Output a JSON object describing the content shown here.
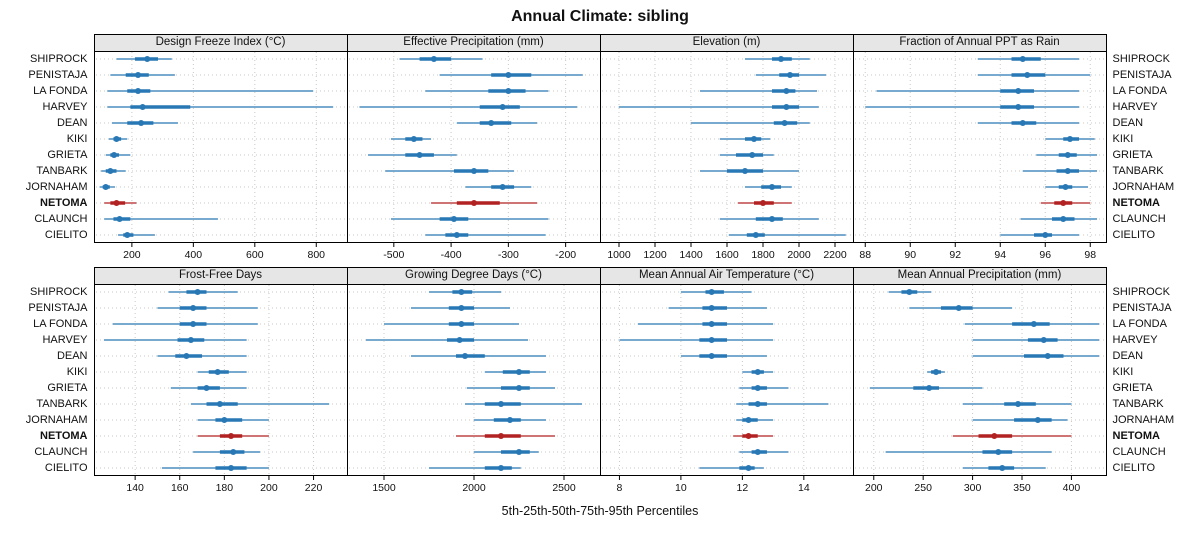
{
  "title": "Annual Climate: sibling",
  "caption": "5th-25th-50th-75th-95th Percentiles",
  "sites": [
    "SHIPROCK",
    "PENISTAJA",
    "LA FONDA",
    "HARVEY",
    "DEAN",
    "KIKI",
    "GRIETA",
    "TANBARK",
    "JORNAHAM",
    "NETOMA",
    "CLAUNCH",
    "CIELITO"
  ],
  "highlight_site": "NETOMA",
  "colors": {
    "series": "#2878b5",
    "highlight": "#b22222",
    "grid": "#c8c8c8",
    "panel_header_bg": "#e6e6e6",
    "border": "#000000"
  },
  "chart_data": [
    {
      "type": "dotplot-percentiles",
      "title": "Design Freeze Index (°C)",
      "xlim": [
        80,
        900
      ],
      "ticks": [
        200,
        400,
        600,
        800
      ],
      "series": [
        {
          "site": "SHIPROCK",
          "p5": 150,
          "p25": 210,
          "p50": 250,
          "p75": 285,
          "p95": 330
        },
        {
          "site": "PENISTAJA",
          "p5": 130,
          "p25": 180,
          "p50": 220,
          "p75": 255,
          "p95": 340
        },
        {
          "site": "LA FONDA",
          "p5": 120,
          "p25": 185,
          "p50": 220,
          "p75": 260,
          "p95": 790
        },
        {
          "site": "HARVEY",
          "p5": 120,
          "p25": 195,
          "p50": 235,
          "p75": 390,
          "p95": 855
        },
        {
          "site": "DEAN",
          "p5": 135,
          "p25": 185,
          "p50": 230,
          "p75": 270,
          "p95": 350
        },
        {
          "site": "KIKI",
          "p5": 125,
          "p25": 140,
          "p50": 150,
          "p75": 165,
          "p95": 185
        },
        {
          "site": "GRIETA",
          "p5": 115,
          "p25": 130,
          "p50": 142,
          "p75": 158,
          "p95": 195
        },
        {
          "site": "TANBARK",
          "p5": 100,
          "p25": 115,
          "p50": 130,
          "p75": 150,
          "p95": 180
        },
        {
          "site": "JORNAHAM",
          "p5": 95,
          "p25": 105,
          "p50": 115,
          "p75": 128,
          "p95": 145
        },
        {
          "site": "NETOMA",
          "p5": 110,
          "p25": 130,
          "p50": 150,
          "p75": 178,
          "p95": 215
        },
        {
          "site": "CLAUNCH",
          "p5": 110,
          "p25": 140,
          "p50": 160,
          "p75": 195,
          "p95": 480
        },
        {
          "site": "CIELITO",
          "p5": 155,
          "p25": 172,
          "p50": 185,
          "p75": 205,
          "p95": 275
        }
      ]
    },
    {
      "type": "dotplot-percentiles",
      "title": "Effective Precipitation (mm)",
      "xlim": [
        -580,
        -140
      ],
      "ticks": [
        -500,
        -400,
        -300,
        -200
      ],
      "series": [
        {
          "site": "SHIPROCK",
          "p5": -490,
          "p25": -455,
          "p50": -430,
          "p75": -400,
          "p95": -345
        },
        {
          "site": "PENISTAJA",
          "p5": -420,
          "p25": -330,
          "p50": -300,
          "p75": -260,
          "p95": -170
        },
        {
          "site": "LA FONDA",
          "p5": -445,
          "p25": -335,
          "p50": -300,
          "p75": -270,
          "p95": -230
        },
        {
          "site": "HARVEY",
          "p5": -560,
          "p25": -350,
          "p50": -310,
          "p75": -280,
          "p95": -180
        },
        {
          "site": "DEAN",
          "p5": -390,
          "p25": -350,
          "p50": -330,
          "p75": -295,
          "p95": -250
        },
        {
          "site": "KIKI",
          "p5": -505,
          "p25": -480,
          "p50": -465,
          "p75": -450,
          "p95": -435
        },
        {
          "site": "GRIETA",
          "p5": -545,
          "p25": -480,
          "p50": -455,
          "p75": -430,
          "p95": -390
        },
        {
          "site": "TANBARK",
          "p5": -515,
          "p25": -395,
          "p50": -360,
          "p75": -335,
          "p95": -290
        },
        {
          "site": "JORNAHAM",
          "p5": -375,
          "p25": -330,
          "p50": -310,
          "p75": -290,
          "p95": -260
        },
        {
          "site": "NETOMA",
          "p5": -435,
          "p25": -390,
          "p50": -360,
          "p75": -315,
          "p95": -250
        },
        {
          "site": "CLAUNCH",
          "p5": -505,
          "p25": -420,
          "p50": -395,
          "p75": -370,
          "p95": -230
        },
        {
          "site": "CIELITO",
          "p5": -445,
          "p25": -410,
          "p50": -390,
          "p75": -370,
          "p95": -235
        }
      ]
    },
    {
      "type": "dotplot-percentiles",
      "title": "Elevation (m)",
      "xlim": [
        900,
        2300
      ],
      "ticks": [
        1000,
        1200,
        1400,
        1600,
        1800,
        2000,
        2200
      ],
      "series": [
        {
          "site": "SHIPROCK",
          "p5": 1700,
          "p25": 1850,
          "p50": 1900,
          "p75": 1960,
          "p95": 2060
        },
        {
          "site": "PENISTAJA",
          "p5": 1760,
          "p25": 1890,
          "p50": 1950,
          "p75": 2000,
          "p95": 2150
        },
        {
          "site": "LA FONDA",
          "p5": 1450,
          "p25": 1850,
          "p50": 1930,
          "p75": 1980,
          "p95": 2100
        },
        {
          "site": "HARVEY",
          "p5": 1000,
          "p25": 1850,
          "p50": 1930,
          "p75": 2000,
          "p95": 2110
        },
        {
          "site": "DEAN",
          "p5": 1400,
          "p25": 1860,
          "p50": 1920,
          "p75": 1990,
          "p95": 2060
        },
        {
          "site": "KIKI",
          "p5": 1560,
          "p25": 1700,
          "p50": 1750,
          "p75": 1790,
          "p95": 1840
        },
        {
          "site": "GRIETA",
          "p5": 1560,
          "p25": 1650,
          "p50": 1740,
          "p75": 1800,
          "p95": 1860
        },
        {
          "site": "TANBARK",
          "p5": 1450,
          "p25": 1600,
          "p50": 1700,
          "p75": 1800,
          "p95": 2000
        },
        {
          "site": "JORNAHAM",
          "p5": 1700,
          "p25": 1790,
          "p50": 1850,
          "p75": 1900,
          "p95": 1960
        },
        {
          "site": "NETOMA",
          "p5": 1660,
          "p25": 1750,
          "p50": 1800,
          "p75": 1860,
          "p95": 1960
        },
        {
          "site": "CLAUNCH",
          "p5": 1560,
          "p25": 1760,
          "p50": 1850,
          "p75": 1910,
          "p95": 2110
        },
        {
          "site": "CIELITO",
          "p5": 1610,
          "p25": 1710,
          "p50": 1760,
          "p75": 1810,
          "p95": 2260
        }
      ]
    },
    {
      "type": "dotplot-percentiles",
      "title": "Fraction of Annual PPT as Rain",
      "xlim": [
        87.5,
        98.7
      ],
      "ticks": [
        88,
        90,
        92,
        94,
        96,
        98
      ],
      "series": [
        {
          "site": "SHIPROCK",
          "p5": 93.0,
          "p25": 94.5,
          "p50": 95.0,
          "p75": 95.8,
          "p95": 97.5
        },
        {
          "site": "PENISTAJA",
          "p5": 93.0,
          "p25": 94.5,
          "p50": 95.2,
          "p75": 96.0,
          "p95": 98.0
        },
        {
          "site": "LA FONDA",
          "p5": 88.5,
          "p25": 94.0,
          "p50": 94.8,
          "p75": 95.5,
          "p95": 97.5
        },
        {
          "site": "HARVEY",
          "p5": 88.0,
          "p25": 94.0,
          "p50": 94.8,
          "p75": 95.5,
          "p95": 97.5
        },
        {
          "site": "DEAN",
          "p5": 93.0,
          "p25": 94.5,
          "p50": 95.0,
          "p75": 95.6,
          "p95": 97.5
        },
        {
          "site": "KIKI",
          "p5": 96.0,
          "p25": 96.8,
          "p50": 97.1,
          "p75": 97.5,
          "p95": 98.2
        },
        {
          "site": "GRIETA",
          "p5": 95.6,
          "p25": 96.6,
          "p50": 97.0,
          "p75": 97.4,
          "p95": 98.3
        },
        {
          "site": "TANBARK",
          "p5": 95.0,
          "p25": 96.5,
          "p50": 97.0,
          "p75": 97.5,
          "p95": 98.3
        },
        {
          "site": "JORNAHAM",
          "p5": 96.0,
          "p25": 96.6,
          "p50": 96.9,
          "p75": 97.2,
          "p95": 97.9
        },
        {
          "site": "NETOMA",
          "p5": 95.8,
          "p25": 96.4,
          "p50": 96.8,
          "p75": 97.2,
          "p95": 98.0
        },
        {
          "site": "CLAUNCH",
          "p5": 94.9,
          "p25": 96.3,
          "p50": 96.8,
          "p75": 97.3,
          "p95": 98.3
        },
        {
          "site": "CIELITO",
          "p5": 94.0,
          "p25": 95.5,
          "p50": 96.0,
          "p75": 96.3,
          "p95": 97.5
        }
      ]
    },
    {
      "type": "dotplot-percentiles",
      "title": "Frost-Free Days",
      "xlim": [
        122,
        235
      ],
      "ticks": [
        140,
        160,
        180,
        200,
        220
      ],
      "series": [
        {
          "site": "SHIPROCK",
          "p5": 155,
          "p25": 163,
          "p50": 168,
          "p75": 172,
          "p95": 186
        },
        {
          "site": "PENISTAJA",
          "p5": 150,
          "p25": 160,
          "p50": 166,
          "p75": 172,
          "p95": 195
        },
        {
          "site": "LA FONDA",
          "p5": 130,
          "p25": 160,
          "p50": 166,
          "p75": 172,
          "p95": 195
        },
        {
          "site": "HARVEY",
          "p5": 126,
          "p25": 159,
          "p50": 165,
          "p75": 171,
          "p95": 190
        },
        {
          "site": "DEAN",
          "p5": 150,
          "p25": 158,
          "p50": 163,
          "p75": 170,
          "p95": 190
        },
        {
          "site": "KIKI",
          "p5": 168,
          "p25": 173,
          "p50": 177,
          "p75": 182,
          "p95": 190
        },
        {
          "site": "GRIETA",
          "p5": 156,
          "p25": 168,
          "p50": 172,
          "p75": 178,
          "p95": 190
        },
        {
          "site": "TANBARK",
          "p5": 165,
          "p25": 172,
          "p50": 178,
          "p75": 186,
          "p95": 227
        },
        {
          "site": "JORNAHAM",
          "p5": 168,
          "p25": 176,
          "p50": 180,
          "p75": 188,
          "p95": 200
        },
        {
          "site": "NETOMA",
          "p5": 168,
          "p25": 178,
          "p50": 183,
          "p75": 188,
          "p95": 200
        },
        {
          "site": "CLAUNCH",
          "p5": 166,
          "p25": 178,
          "p50": 184,
          "p75": 189,
          "p95": 196
        },
        {
          "site": "CIELITO",
          "p5": 152,
          "p25": 176,
          "p50": 183,
          "p75": 190,
          "p95": 200
        }
      ]
    },
    {
      "type": "dotplot-percentiles",
      "title": "Growing Degree Days (°C)",
      "xlim": [
        1300,
        2700
      ],
      "ticks": [
        1500,
        2000,
        2500
      ],
      "series": [
        {
          "site": "SHIPROCK",
          "p5": 1750,
          "p25": 1880,
          "p50": 1930,
          "p75": 1990,
          "p95": 2150
        },
        {
          "site": "PENISTAJA",
          "p5": 1650,
          "p25": 1860,
          "p50": 1930,
          "p75": 2000,
          "p95": 2200
        },
        {
          "site": "LA FONDA",
          "p5": 1500,
          "p25": 1860,
          "p50": 1930,
          "p75": 2000,
          "p95": 2250
        },
        {
          "site": "HARVEY",
          "p5": 1400,
          "p25": 1850,
          "p50": 1920,
          "p75": 2000,
          "p95": 2300
        },
        {
          "site": "DEAN",
          "p5": 1650,
          "p25": 1900,
          "p50": 1950,
          "p75": 2060,
          "p95": 2400
        },
        {
          "site": "KIKI",
          "p5": 2060,
          "p25": 2160,
          "p50": 2250,
          "p75": 2310,
          "p95": 2400
        },
        {
          "site": "GRIETA",
          "p5": 1960,
          "p25": 2150,
          "p50": 2250,
          "p75": 2310,
          "p95": 2450
        },
        {
          "site": "TANBARK",
          "p5": 1950,
          "p25": 2060,
          "p50": 2150,
          "p75": 2260,
          "p95": 2600
        },
        {
          "site": "JORNAHAM",
          "p5": 2000,
          "p25": 2110,
          "p50": 2200,
          "p75": 2260,
          "p95": 2400
        },
        {
          "site": "NETOMA",
          "p5": 1900,
          "p25": 2060,
          "p50": 2150,
          "p75": 2260,
          "p95": 2450
        },
        {
          "site": "CLAUNCH",
          "p5": 2000,
          "p25": 2150,
          "p50": 2250,
          "p75": 2310,
          "p95": 2360
        },
        {
          "site": "CIELITO",
          "p5": 1750,
          "p25": 2060,
          "p50": 2150,
          "p75": 2210,
          "p95": 2260
        }
      ]
    },
    {
      "type": "dotplot-percentiles",
      "title": "Mean Annual Air Temperature (°C)",
      "xlim": [
        7.4,
        15.6
      ],
      "ticks": [
        8,
        10,
        12,
        14
      ],
      "series": [
        {
          "site": "SHIPROCK",
          "p5": 10.0,
          "p25": 10.8,
          "p50": 11.0,
          "p75": 11.4,
          "p95": 12.3
        },
        {
          "site": "PENISTAJA",
          "p5": 9.6,
          "p25": 10.7,
          "p50": 11.0,
          "p75": 11.5,
          "p95": 12.8
        },
        {
          "site": "LA FONDA",
          "p5": 8.6,
          "p25": 10.7,
          "p50": 11.0,
          "p75": 11.5,
          "p95": 13.0
        },
        {
          "site": "HARVEY",
          "p5": 8.0,
          "p25": 10.6,
          "p50": 11.0,
          "p75": 11.5,
          "p95": 13.0
        },
        {
          "site": "DEAN",
          "p5": 10.0,
          "p25": 10.6,
          "p50": 11.0,
          "p75": 11.5,
          "p95": 12.8
        },
        {
          "site": "KIKI",
          "p5": 12.0,
          "p25": 12.3,
          "p50": 12.5,
          "p75": 12.7,
          "p95": 13.0
        },
        {
          "site": "GRIETA",
          "p5": 11.9,
          "p25": 12.3,
          "p50": 12.5,
          "p75": 12.8,
          "p95": 13.5
        },
        {
          "site": "TANBARK",
          "p5": 11.8,
          "p25": 12.2,
          "p50": 12.5,
          "p75": 12.8,
          "p95": 14.8
        },
        {
          "site": "JORNAHAM",
          "p5": 11.8,
          "p25": 12.0,
          "p50": 12.2,
          "p75": 12.5,
          "p95": 13.0
        },
        {
          "site": "NETOMA",
          "p5": 11.7,
          "p25": 12.0,
          "p50": 12.2,
          "p75": 12.5,
          "p95": 13.0
        },
        {
          "site": "CLAUNCH",
          "p5": 11.9,
          "p25": 12.3,
          "p50": 12.5,
          "p75": 12.8,
          "p95": 13.5
        },
        {
          "site": "CIELITO",
          "p5": 10.6,
          "p25": 11.9,
          "p50": 12.2,
          "p75": 12.4,
          "p95": 12.7
        }
      ]
    },
    {
      "type": "dotplot-percentiles",
      "title": "Mean Annual Precipitation (mm)",
      "xlim": [
        180,
        435
      ],
      "ticks": [
        200,
        250,
        300,
        350,
        400
      ],
      "series": [
        {
          "site": "SHIPROCK",
          "p5": 215,
          "p25": 228,
          "p50": 236,
          "p75": 244,
          "p95": 258
        },
        {
          "site": "PENISTAJA",
          "p5": 236,
          "p25": 268,
          "p50": 286,
          "p75": 300,
          "p95": 340
        },
        {
          "site": "LA FONDA",
          "p5": 292,
          "p25": 340,
          "p50": 362,
          "p75": 378,
          "p95": 428
        },
        {
          "site": "HARVEY",
          "p5": 300,
          "p25": 356,
          "p50": 372,
          "p75": 386,
          "p95": 428
        },
        {
          "site": "DEAN",
          "p5": 300,
          "p25": 352,
          "p50": 376,
          "p75": 392,
          "p95": 428
        },
        {
          "site": "KIKI",
          "p5": 254,
          "p25": 258,
          "p50": 263,
          "p75": 268,
          "p95": 272
        },
        {
          "site": "GRIETA",
          "p5": 196,
          "p25": 240,
          "p50": 256,
          "p75": 266,
          "p95": 310
        },
        {
          "site": "TANBARK",
          "p5": 290,
          "p25": 332,
          "p50": 346,
          "p75": 364,
          "p95": 400
        },
        {
          "site": "JORNAHAM",
          "p5": 300,
          "p25": 342,
          "p50": 366,
          "p75": 380,
          "p95": 396
        },
        {
          "site": "NETOMA",
          "p5": 280,
          "p25": 306,
          "p50": 322,
          "p75": 340,
          "p95": 400
        },
        {
          "site": "CLAUNCH",
          "p5": 212,
          "p25": 310,
          "p50": 326,
          "p75": 340,
          "p95": 380
        },
        {
          "site": "CIELITO",
          "p5": 290,
          "p25": 316,
          "p50": 330,
          "p75": 342,
          "p95": 374
        }
      ]
    }
  ]
}
